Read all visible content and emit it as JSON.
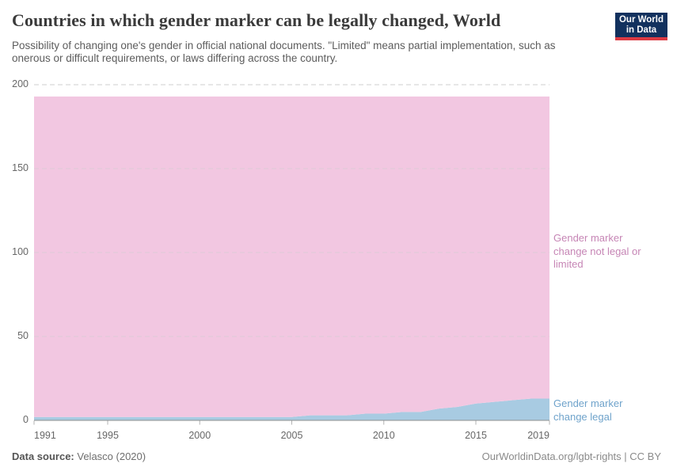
{
  "header": {
    "title": "Countries in which gender marker can be legally changed, World",
    "subtitle": "Possibility of changing one's gender in official national documents. \"Limited\" means partial implementation, such as onerous or difficult requirements, or laws differing across the country.",
    "logo": {
      "line1": "Our World",
      "line2": "in Data",
      "bg_color": "#12315e",
      "accent_color": "#dc3a43"
    }
  },
  "footer": {
    "source_label": "Data source:",
    "source_value": "Velasco (2020)",
    "credit": "OurWorldinData.org/lgbt-rights | CC BY"
  },
  "chart_data": {
    "type": "area",
    "stacked": true,
    "title": "Countries in which gender marker can be legally changed, World",
    "x": [
      1991,
      1992,
      1993,
      1994,
      1995,
      1996,
      1997,
      1998,
      1999,
      2000,
      2001,
      2002,
      2003,
      2004,
      2005,
      2006,
      2007,
      2008,
      2009,
      2010,
      2011,
      2012,
      2013,
      2014,
      2015,
      2016,
      2017,
      2018,
      2019
    ],
    "series": [
      {
        "name": "Gender marker change legal",
        "color": "#a8cbe2",
        "label_color": "#6fa3cb",
        "values": [
          2,
          2,
          2,
          2,
          2,
          2,
          2,
          2,
          2,
          2,
          2,
          2,
          2,
          2,
          2,
          3,
          3,
          3,
          4,
          4,
          5,
          5,
          7,
          8,
          10,
          11,
          12,
          13,
          13
        ]
      },
      {
        "name": "Gender marker change not legal or limited",
        "color": "#f2c7e1",
        "label_color": "#c685b5",
        "values": [
          191,
          191,
          191,
          191,
          191,
          191,
          191,
          191,
          191,
          191,
          191,
          191,
          191,
          191,
          191,
          190,
          190,
          190,
          189,
          189,
          188,
          188,
          186,
          185,
          183,
          182,
          181,
          180,
          180
        ]
      }
    ],
    "total_countries": 193,
    "ylim": [
      0,
      200
    ],
    "y_ticks": [
      0,
      50,
      100,
      150,
      200
    ],
    "x_ticks": [
      1991,
      1995,
      2000,
      2005,
      2010,
      2015,
      2019
    ],
    "grid": "horizontal-dashed",
    "legend_position": "right-edge-labels",
    "axis_color": "#8f8f8f",
    "grid_color": "#cfcfcf"
  }
}
